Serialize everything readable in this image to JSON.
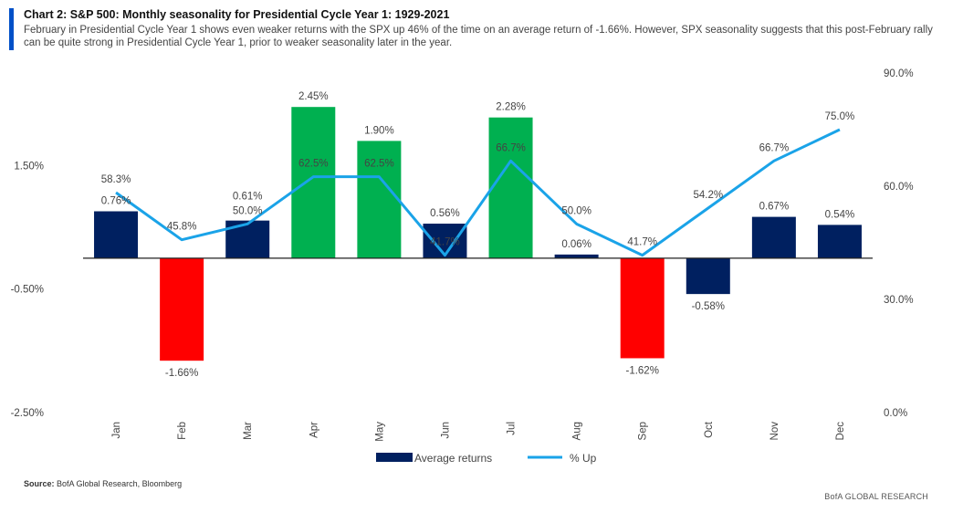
{
  "header": {
    "title": "Chart 2: S&P 500: Monthly seasonality for Presidential Cycle Year 1: 1929-2021",
    "subtitle": "February in Presidential Cycle Year 1 shows even weaker returns with the SPX up 46% of the time on an average return of -1.66%. However, SPX seasonality suggests that this post-February rally can be quite strong in Presidential Cycle Year 1, prior to weaker seasonality later in the year."
  },
  "chart_data": {
    "type": "bar+line",
    "categories": [
      "Jan",
      "Feb",
      "Mar",
      "Apr",
      "May",
      "Jun",
      "Jul",
      "Aug",
      "Sep",
      "Oct",
      "Nov",
      "Dec"
    ],
    "series": [
      {
        "name": "Average returns",
        "type": "bar",
        "axis": "left",
        "values": [
          0.76,
          -1.66,
          0.61,
          2.45,
          1.9,
          0.56,
          2.28,
          0.06,
          -1.62,
          -0.58,
          0.67,
          0.54
        ],
        "labels": [
          "0.76%",
          "-1.66%",
          "0.61%",
          "2.45%",
          "1.90%",
          "0.56%",
          "2.28%",
          "0.06%",
          "-1.62%",
          "-0.58%",
          "0.67%",
          "0.54%"
        ],
        "bar_colors": [
          "#002060",
          "#ff0000",
          "#002060",
          "#00b050",
          "#00b050",
          "#002060",
          "#00b050",
          "#002060",
          "#ff0000",
          "#002060",
          "#002060",
          "#002060"
        ]
      },
      {
        "name": "% Up",
        "type": "line",
        "axis": "right",
        "values": [
          58.3,
          45.8,
          50.0,
          62.5,
          62.5,
          41.7,
          66.7,
          50.0,
          41.7,
          54.2,
          66.7,
          75.0
        ],
        "labels": [
          "58.3%",
          "45.8%",
          "50.0%",
          "62.5%",
          "62.5%",
          "41.7%",
          "66.7%",
          "50.0%",
          "41.7%",
          "54.2%",
          "66.7%",
          "75.0%"
        ],
        "color": "#1aa3e8"
      }
    ],
    "left_axis": {
      "ylim": [
        -2.5,
        3.0
      ],
      "ticks": [
        1.5,
        -0.5,
        -2.5
      ],
      "tick_labels": [
        "1.50%",
        "-0.50%",
        "-2.50%"
      ]
    },
    "right_axis": {
      "ylim": [
        0,
        90
      ],
      "ticks": [
        90,
        60,
        30,
        0
      ],
      "tick_labels": [
        "90.0%",
        "60.0%",
        "30.0%",
        "0.0%"
      ]
    },
    "legend": {
      "placement": "bottom",
      "items": [
        "Average returns",
        "% Up"
      ]
    },
    "grid": false
  },
  "footer": {
    "source_label": "Source:",
    "source_text": "BofA Global Research, Bloomberg",
    "brand": "BofA GLOBAL RESEARCH"
  }
}
